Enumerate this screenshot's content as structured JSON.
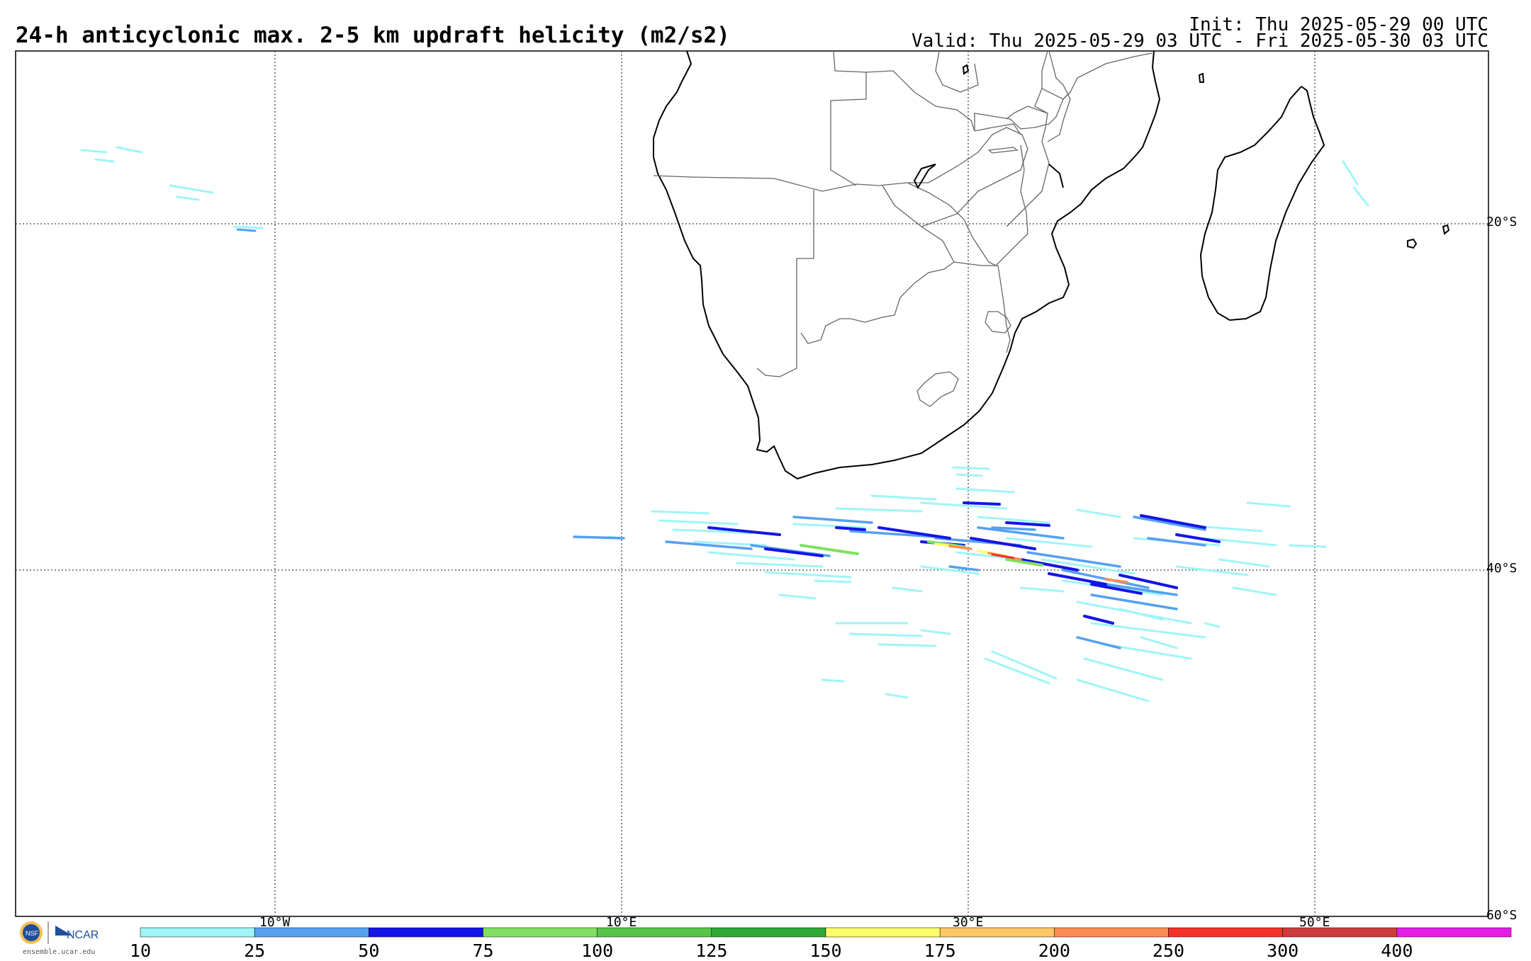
{
  "title": "24-h anticyclonic max. 2-5 km updraft helicity (m2/s2)",
  "init": "Init: Thu 2025-05-29 00 UTC",
  "valid": "Valid: Thu 2025-05-29 03 UTC - Fri 2025-05-30 03 UTC",
  "latitude_labels": [
    "20°S",
    "40°S",
    "60°S"
  ],
  "longitude_labels": [
    "10°W",
    "10°E",
    "30°E",
    "50°E"
  ],
  "colorbar": {
    "labels": [
      "10",
      "25",
      "50",
      "75",
      "100",
      "125",
      "150",
      "175",
      "200",
      "250",
      "300",
      "400"
    ],
    "colors": [
      "#9ff5f7",
      "#55a0f0",
      "#1414e6",
      "#80e060",
      "#55c64a",
      "#2ea838",
      "#fdfc6a",
      "#fec865",
      "#fc8c53",
      "#f5322a",
      "#cc3c3a",
      "#e41ee4"
    ]
  },
  "logo": {
    "org_text": "NCAR",
    "site": "ensemble.ucar.edu"
  }
}
